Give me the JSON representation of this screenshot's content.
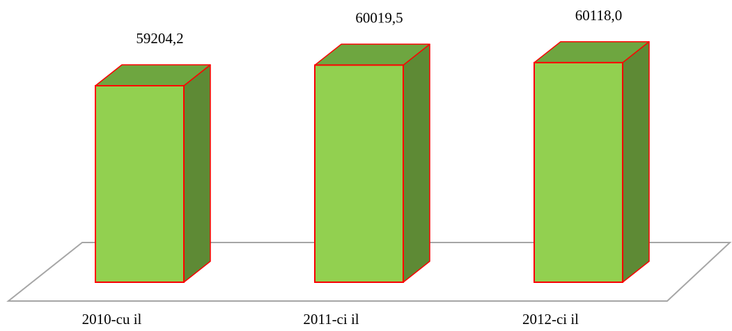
{
  "chart_data": {
    "type": "bar",
    "style": "3d-column",
    "categories": [
      "2010-cu il",
      "2011-ci il",
      "2012-ci il"
    ],
    "values": [
      59204.2,
      60019.5,
      60118.0
    ],
    "value_labels": [
      "59204,2",
      "60019,5",
      "60118,0"
    ],
    "title": "",
    "xlabel": "",
    "ylabel": "",
    "grid": false,
    "legend": "none",
    "colors": {
      "front": "#92d050",
      "side": "#5e8a35",
      "top": "#6ea640",
      "edge": "#ff0000",
      "floor": "#a6a6a6"
    }
  }
}
